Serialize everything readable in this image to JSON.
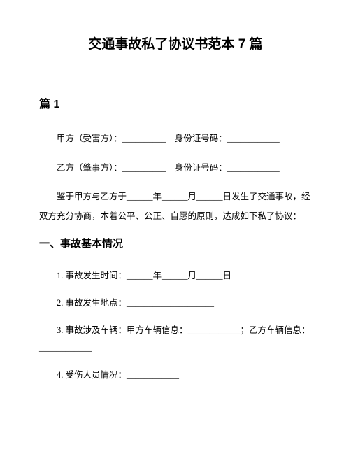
{
  "title": "交通事故私了协议书范本 7 篇",
  "section1_header": "篇 1",
  "party_a": "甲方（受害方）：__________　身份证号码：____________",
  "party_b": "乙方（肇事方）：__________　身份证号码：____________",
  "intro_line1": "鉴于甲方与乙方于______年______月______日发生了交通事故，经",
  "intro_line2": "双方充分协商，本着公平、公正、自愿的原则，达成如下私了协议：",
  "h2_1": "一、事故基本情况",
  "item1": "1.  事故发生时间：______年______月______日",
  "item2": "2.  事故发生地点：____________________",
  "item3_l1": "3.  事故涉及车辆：甲方车辆信息：____________；乙方车辆信息：",
  "item3_l2": "____________",
  "item4": "4.  受伤人员情况：____________",
  "colors": {
    "background": "#ffffff",
    "text": "#000000"
  },
  "typography": {
    "title_fontsize": 19,
    "section_header_fontsize": 16,
    "body_fontsize": 12.5,
    "h2_fontsize": 15
  }
}
